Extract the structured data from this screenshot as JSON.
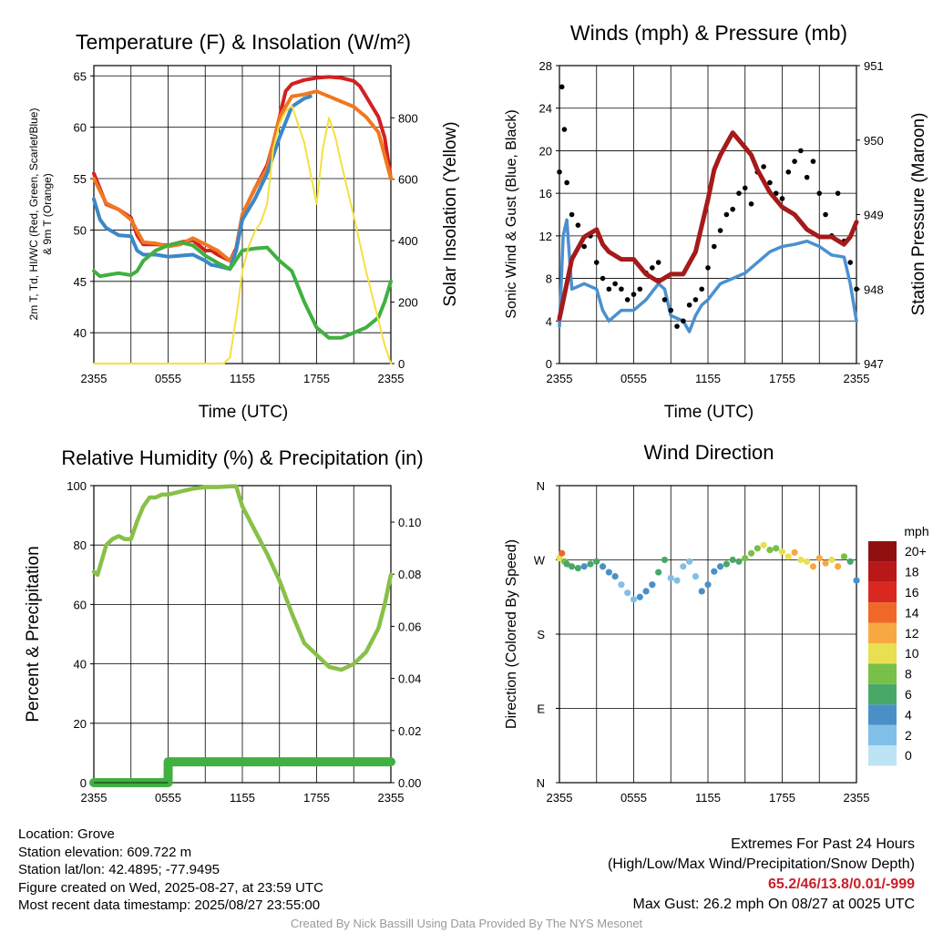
{
  "panels": {
    "temp": {
      "title": "Temperature (F) & Insolation (W/m²)",
      "xlabel": "Time (UTC)",
      "ylabel_lines": [
        "2m T, Td, HI/WC (Red, Green, Scarlet/Blue)",
        "& 9m T (Orange)"
      ],
      "y2label": "Solar Insolation (Yellow)"
    },
    "wind": {
      "title": "Winds (mph) & Pressure (mb)",
      "xlabel": "Time (UTC)",
      "ylabel": "Sonic Wind & Gust (Blue, Black)",
      "y2label": "Station Pressure (Maroon)"
    },
    "rh": {
      "title": "Relative Humidity (%) & Precipitation (in)",
      "ylabel": "Percent & Precipitation"
    },
    "dir": {
      "title": "Wind Direction",
      "ylabel": "Direction (Colored By Speed)",
      "colorbar_title": "mph"
    }
  },
  "x_ticks": [
    "2355",
    "0555",
    "1155",
    "1755",
    "2355"
  ],
  "chart_data": [
    {
      "id": "temp",
      "type": "line",
      "x_range_hours": [
        0,
        24
      ],
      "ylim": [
        37,
        66
      ],
      "y_ticks": [
        40,
        45,
        50,
        55,
        60,
        65
      ],
      "y2lim": [
        0,
        970
      ],
      "y2_ticks": [
        0,
        200,
        400,
        600,
        800
      ],
      "series": [
        {
          "color": "#d42020",
          "x": [
            0,
            0.5,
            1,
            2,
            3,
            3.5,
            4,
            5,
            6,
            7,
            8,
            8.5,
            9,
            9.5,
            10,
            11,
            11.5,
            12,
            13,
            14,
            14.5,
            15,
            15.5,
            16,
            17,
            18,
            19,
            20,
            21,
            21.5,
            22,
            22.5,
            23,
            23.5,
            24
          ],
          "values": [
            55.5,
            54,
            52.5,
            52,
            51.2,
            49.5,
            48.6,
            48.6,
            48.5,
            48.8,
            49,
            48.5,
            48,
            48,
            47.6,
            47,
            48.2,
            51.5,
            54,
            56.3,
            58.5,
            61,
            63.5,
            64.2,
            64.6,
            64.8,
            64.9,
            64.8,
            64.5,
            64,
            63,
            62,
            61,
            59,
            55
          ]
        },
        {
          "color": "#f07820",
          "x": [
            0,
            1,
            2,
            3,
            4,
            5,
            6,
            7,
            8,
            9,
            10,
            11,
            11.5,
            12,
            13,
            14,
            15,
            16,
            17,
            18,
            19,
            20,
            21,
            22,
            23,
            24
          ],
          "values": [
            55,
            52.6,
            52,
            51,
            48.8,
            48.7,
            48.4,
            48.6,
            49.2,
            48.6,
            48,
            47,
            48,
            51.5,
            54,
            56,
            61,
            63,
            63.2,
            63.5,
            63,
            62.5,
            62,
            61,
            59.5,
            55
          ]
        },
        {
          "color": "#3a88c8",
          "x": [
            0,
            0.5,
            1,
            2,
            3,
            3.5,
            4,
            5,
            6,
            7,
            8,
            9,
            9.5,
            10,
            11,
            11.5,
            12,
            13,
            14,
            15,
            16,
            17,
            17.5
          ],
          "values": [
            53,
            51,
            50.2,
            49.5,
            49.4,
            48,
            47.6,
            47.6,
            47.4,
            47.5,
            47.6,
            47,
            46.6,
            46.5,
            46.2,
            48,
            51,
            53,
            55.5,
            59,
            62,
            62.8,
            63
          ]
        },
        {
          "color": "#40b040",
          "x": [
            0,
            0.5,
            1,
            2,
            3,
            3.5,
            4,
            5,
            6,
            7,
            8,
            9,
            10,
            11,
            12,
            13,
            14,
            15,
            16,
            17,
            18,
            19,
            20,
            21,
            22,
            23,
            23.5,
            24
          ],
          "values": [
            46,
            45.5,
            45.6,
            45.8,
            45.6,
            46,
            47,
            48,
            48.5,
            48.8,
            48.5,
            47.5,
            46.8,
            46.2,
            48,
            48.2,
            48.3,
            47,
            46,
            43,
            40.5,
            39.5,
            39.5,
            40,
            40.5,
            41.5,
            43,
            45
          ]
        },
        {
          "color": "#f4e040",
          "x": [
            0,
            10.5,
            11,
            11.5,
            12,
            12.5,
            13,
            13.5,
            14,
            14.5,
            15,
            15.5,
            16,
            16.5,
            17,
            17.5,
            18,
            18.5,
            19,
            19.5,
            20,
            21,
            22,
            23,
            23.5,
            24
          ],
          "values": [
            0,
            0,
            20,
            150,
            300,
            380,
            430,
            460,
            520,
            700,
            780,
            820,
            840,
            780,
            720,
            620,
            520,
            700,
            800,
            740,
            650,
            480,
            300,
            140,
            60,
            0
          ]
        }
      ]
    },
    {
      "id": "wind",
      "type": "line",
      "x_range_hours": [
        0,
        24
      ],
      "ylim": [
        0,
        28
      ],
      "y_ticks": [
        0,
        4,
        8,
        12,
        16,
        20,
        24,
        28
      ],
      "y2lim": [
        947,
        951
      ],
      "y2_ticks": [
        947,
        948,
        949,
        950,
        951
      ],
      "series": [
        {
          "color": "#4a90d0",
          "x": [
            0,
            0.3,
            0.6,
            1,
            2,
            3,
            3.5,
            4,
            5,
            6,
            7,
            8,
            8.5,
            9,
            10,
            10.5,
            11,
            11.5,
            12,
            13,
            14,
            15,
            16,
            17,
            18,
            19,
            20,
            21,
            22,
            23,
            23.5,
            24
          ],
          "values": [
            3.5,
            12,
            13.5,
            7,
            7.5,
            7,
            5,
            4,
            5,
            5,
            6,
            7.5,
            7,
            4.5,
            4,
            3,
            4.5,
            5.5,
            6,
            7.5,
            8,
            8.5,
            9.5,
            10.5,
            11,
            11.2,
            11.5,
            11,
            10.2,
            10,
            7.5,
            4
          ]
        },
        {
          "color": "#a51a1a",
          "x": [
            0,
            0.5,
            1,
            2,
            3,
            3.5,
            4,
            5,
            6,
            7,
            8,
            9,
            10,
            11,
            12,
            12.5,
            13,
            14,
            15,
            15.5,
            16,
            17,
            18,
            19,
            20,
            21,
            22,
            23,
            23.5,
            24
          ],
          "values": [
            947.6,
            948,
            948.4,
            948.7,
            948.8,
            948.6,
            948.5,
            948.4,
            948.4,
            948.2,
            948.1,
            948.2,
            948.2,
            948.5,
            949.2,
            949.6,
            949.8,
            950.1,
            949.9,
            949.8,
            949.6,
            949.3,
            949.1,
            949,
            948.8,
            948.7,
            948.7,
            948.6,
            948.7,
            948.9
          ]
        }
      ],
      "gust_points": {
        "color": "#000000",
        "x": [
          0,
          0.2,
          0.4,
          0.6,
          1,
          1.5,
          2,
          2.5,
          3,
          3.5,
          4,
          4.5,
          5,
          5.5,
          6,
          6.5,
          7,
          7.5,
          8,
          8.5,
          9,
          9.5,
          10,
          10.5,
          11,
          11.5,
          12,
          12.5,
          13,
          13.5,
          14,
          14.5,
          15,
          15.5,
          16,
          16.5,
          17,
          17.5,
          18,
          18.5,
          19,
          19.5,
          20,
          20.5,
          21,
          21.5,
          22,
          22.5,
          23,
          23.5,
          24
        ],
        "values": [
          18,
          26,
          22,
          17,
          14,
          13,
          11,
          12,
          9.5,
          8,
          7,
          7.5,
          7,
          6,
          6.5,
          7,
          8.5,
          9,
          9.5,
          6,
          5,
          3.5,
          4,
          5.5,
          6,
          7,
          9,
          11,
          12.5,
          14,
          14.5,
          16,
          16.5,
          15,
          18,
          18.5,
          17,
          16,
          15.5,
          18,
          19,
          20,
          17.5,
          19,
          16,
          14,
          12,
          16,
          11.5,
          9.5,
          7
        ]
      }
    },
    {
      "id": "rh",
      "type": "line",
      "x_range_hours": [
        0,
        24
      ],
      "ylim": [
        0,
        100
      ],
      "y_ticks": [
        0,
        20,
        40,
        60,
        80,
        100
      ],
      "y2lim": [
        0,
        0.114
      ],
      "y2_ticks": [
        "0.00",
        "0.02",
        "0.04",
        "0.06",
        "0.08",
        "0.10"
      ],
      "series": [
        {
          "color": "#88c048",
          "x": [
            0,
            0.3,
            1,
            1.5,
            2,
            2.5,
            3,
            3.5,
            4,
            4.5,
            5,
            5.5,
            6,
            7,
            8,
            9,
            10,
            11,
            11.5,
            12,
            13,
            14,
            15,
            16,
            16.5,
            17,
            17.5,
            18,
            19,
            20,
            21,
            22,
            23,
            23.5,
            24
          ],
          "values": [
            71,
            70,
            80,
            82,
            83,
            82,
            82,
            88,
            93,
            96,
            96,
            97,
            97,
            98,
            99,
            99.5,
            99.5,
            99.8,
            99.8,
            93,
            85,
            77,
            68,
            57,
            52,
            47,
            45,
            43,
            39,
            38,
            40,
            44,
            52,
            60,
            70
          ]
        },
        {
          "color": "#40b040",
          "x": [
            0,
            6,
            6.01,
            24
          ],
          "values": [
            0,
            0,
            0.008,
            0.008
          ],
          "y_axis": "right"
        }
      ]
    },
    {
      "id": "dir",
      "type": "scatter",
      "x_range_hours": [
        0,
        24
      ],
      "y_ticks": [
        "N",
        "E",
        "S",
        "W",
        "N"
      ],
      "y_range_deg": [
        0,
        360
      ],
      "colorbar": {
        "labels": [
          "0",
          "2",
          "4",
          "6",
          "8",
          "10",
          "12",
          "14",
          "16",
          "18",
          "20+"
        ],
        "colors": [
          "#bde4f4",
          "#80c0e8",
          "#4a90c8",
          "#48a868",
          "#78c048",
          "#e8e050",
          "#f8a840",
          "#f06828",
          "#d82820",
          "#b81818",
          "#901010"
        ]
      },
      "x": [
        0,
        0.2,
        0.4,
        0.6,
        1,
        1.5,
        2,
        2.5,
        3,
        3.5,
        4,
        4.5,
        5,
        5.5,
        6,
        6.5,
        7,
        7.5,
        8,
        8.5,
        9,
        9.5,
        10,
        10.5,
        11,
        11.5,
        12,
        12.5,
        13,
        13.5,
        14,
        14.5,
        15,
        15.5,
        16,
        16.5,
        17,
        17.5,
        18,
        18.5,
        19,
        19.5,
        20,
        20.5,
        21,
        21.5,
        22,
        22.5,
        23,
        23.5,
        24
      ],
      "direction": [
        272,
        278,
        268,
        265,
        262,
        260,
        262,
        265,
        268,
        262,
        255,
        250,
        240,
        230,
        222,
        225,
        232,
        240,
        255,
        270,
        248,
        245,
        262,
        268,
        250,
        232,
        240,
        256,
        262,
        265,
        270,
        268,
        272,
        278,
        284,
        288,
        282,
        284,
        280,
        274,
        279,
        270,
        268,
        262,
        272,
        266,
        270,
        262,
        274,
        268,
        245
      ],
      "speed": [
        10,
        14,
        8,
        6,
        7,
        6,
        5,
        6,
        7,
        5,
        4,
        4,
        3,
        2,
        3,
        4,
        4,
        5,
        6,
        7,
        3,
        2,
        2,
        2,
        3,
        4,
        4,
        4,
        5,
        6,
        7,
        7,
        8,
        8,
        9,
        10,
        8,
        9,
        10,
        11,
        12,
        11,
        11,
        12,
        12,
        12,
        11,
        13,
        9,
        6,
        4
      ]
    }
  ],
  "info": {
    "location": "Location: Grove",
    "elevation": "Station elevation: 609.722 m",
    "latlon": "Station lat/lon: 42.4895; -77.9495",
    "created": "Figure created on Wed, 2025-08-27, at 23:59 UTC",
    "recent": "Most recent data timestamp: 2025/08/27 23:55:00",
    "extremes_title": "Extremes For Past 24 Hours",
    "extremes_desc": "(High/Low/Max Wind/Precipitation/Snow Depth)",
    "extremes_values": "65.2/46/13.8/0.01/-999",
    "max_gust": "Max Gust: 26.2 mph On 08/27 at 0025 UTC",
    "credit": "Created By Nick Bassill Using Data Provided By The NYS Mesonet"
  }
}
